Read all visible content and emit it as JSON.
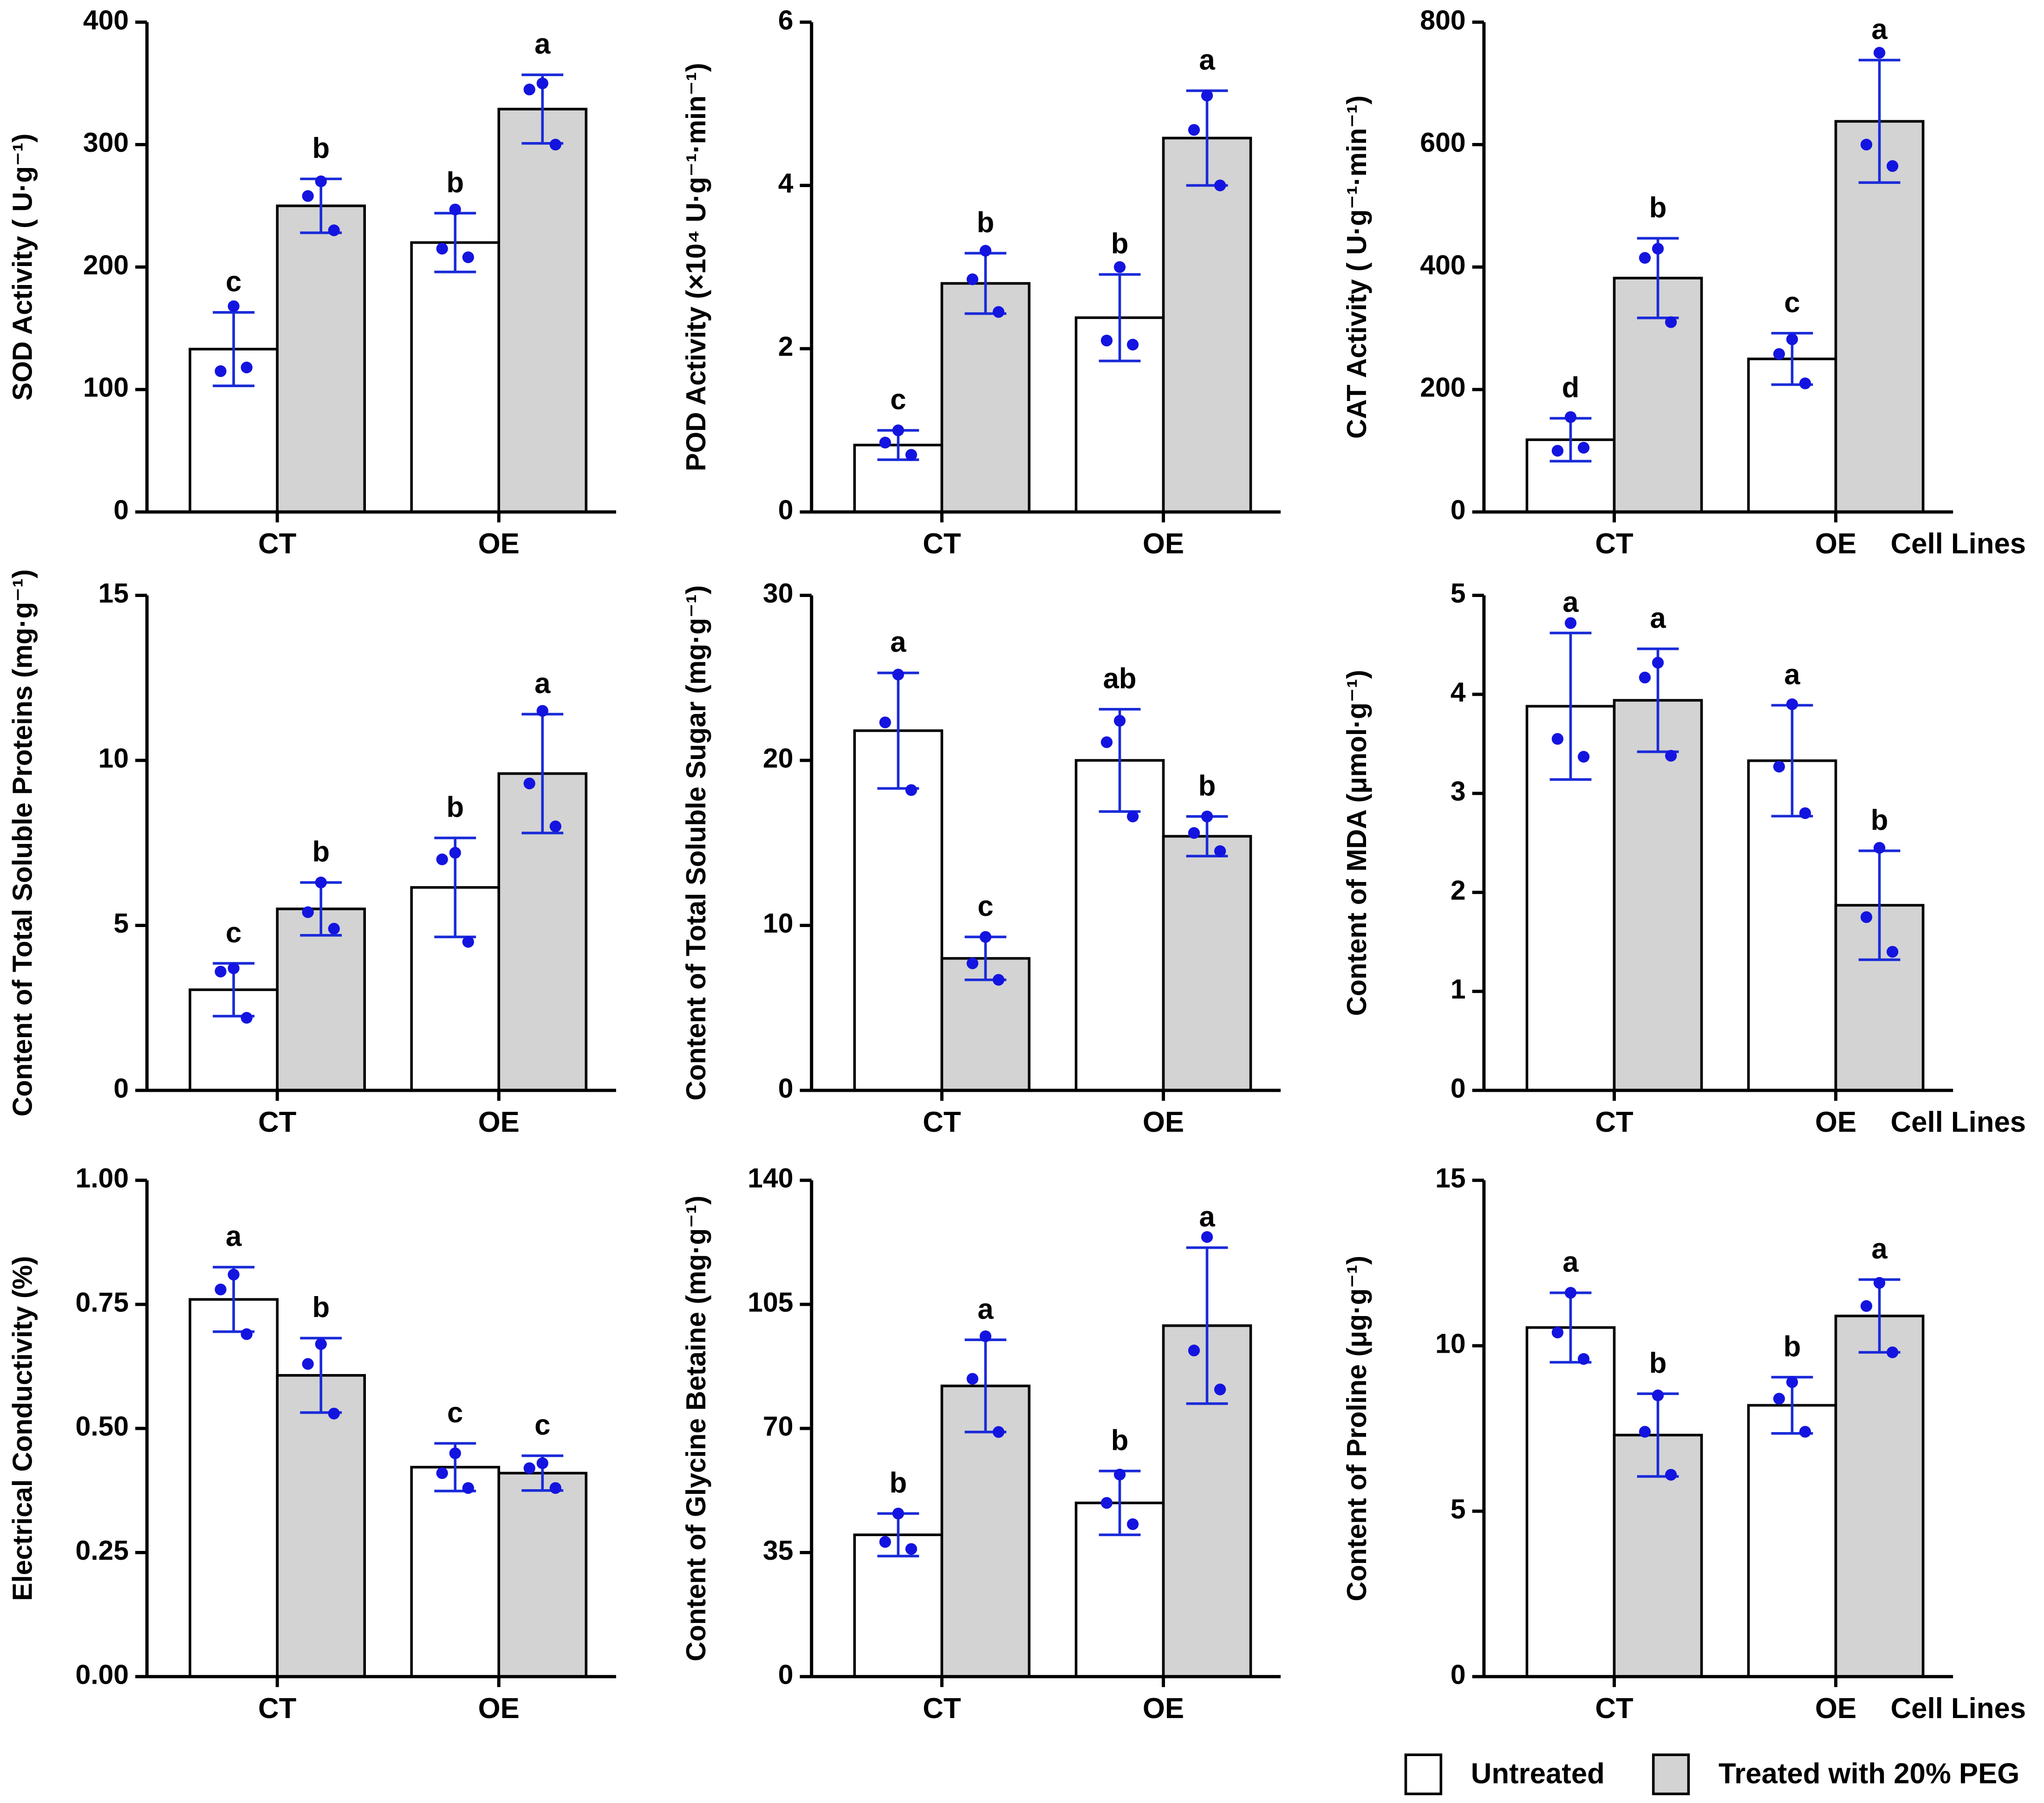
{
  "chart_data": [
    {
      "type": "bar",
      "ylabel": "SOD Activity  ( U·g⁻¹)",
      "categories": [
        "CT",
        "OE"
      ],
      "ylim": [
        0,
        400
      ],
      "yticks": [
        0,
        100,
        200,
        300,
        400
      ],
      "series": [
        {
          "color": "#ffffff",
          "values": [
            133,
            220
          ],
          "errors": [
            30,
            24
          ],
          "labels": [
            "c",
            "b"
          ],
          "points": [
            [
              168,
              115,
              118
            ],
            [
              247,
              215,
              208
            ]
          ]
        },
        {
          "color": "#d3d3d3",
          "values": [
            250,
            329
          ],
          "errors": [
            22,
            28
          ],
          "labels": [
            "b",
            "a"
          ],
          "points": [
            [
              270,
              258,
              230
            ],
            [
              350,
              345,
              300
            ]
          ]
        }
      ]
    },
    {
      "type": "bar",
      "ylabel": "POD Activity  (×10⁴ U·g⁻¹·min⁻¹)",
      "categories": [
        "CT",
        "OE"
      ],
      "ylim": [
        0,
        6
      ],
      "yticks": [
        0,
        2,
        4,
        6
      ],
      "series": [
        {
          "color": "#ffffff",
          "values": [
            0.82,
            2.38
          ],
          "errors": [
            0.18,
            0.53
          ],
          "labels": [
            "c",
            "b"
          ],
          "points": [
            [
              1.0,
              0.85,
              0.7
            ],
            [
              3.0,
              2.1,
              2.05
            ]
          ]
        },
        {
          "color": "#d3d3d3",
          "values": [
            2.8,
            4.58
          ],
          "errors": [
            0.37,
            0.58
          ],
          "labels": [
            "b",
            "a"
          ],
          "points": [
            [
              3.2,
              2.85,
              2.45
            ],
            [
              5.1,
              4.68,
              4.0
            ]
          ]
        }
      ]
    },
    {
      "type": "bar",
      "ylabel": "CAT Activity  ( U·g⁻¹·min⁻¹)",
      "xlabel": "Cell Lines",
      "categories": [
        "CT",
        "OE"
      ],
      "ylim": [
        0,
        800
      ],
      "yticks": [
        0,
        200,
        400,
        600,
        800
      ],
      "series": [
        {
          "color": "#ffffff",
          "values": [
            118,
            250
          ],
          "errors": [
            35,
            42
          ],
          "labels": [
            "d",
            "c"
          ],
          "points": [
            [
              155,
              100,
              105
            ],
            [
              282,
              258,
              210
            ]
          ]
        },
        {
          "color": "#d3d3d3",
          "values": [
            382,
            638
          ],
          "errors": [
            65,
            100
          ],
          "labels": [
            "b",
            "a"
          ],
          "points": [
            [
              430,
              415,
              310
            ],
            [
              750,
              600,
              565
            ]
          ]
        }
      ]
    },
    {
      "type": "bar",
      "ylabel": "Content of Total Soluble Proteins (mg·g⁻¹)",
      "categories": [
        "CT",
        "OE"
      ],
      "ylim": [
        0,
        15
      ],
      "yticks": [
        0,
        5,
        10,
        15
      ],
      "series": [
        {
          "color": "#ffffff",
          "values": [
            3.05,
            6.15
          ],
          "errors": [
            0.8,
            1.5
          ],
          "labels": [
            "c",
            "b"
          ],
          "points": [
            [
              3.7,
              3.6,
              2.2
            ],
            [
              7.2,
              7.0,
              4.5
            ]
          ]
        },
        {
          "color": "#d3d3d3",
          "values": [
            5.5,
            9.6
          ],
          "errors": [
            0.8,
            1.8
          ],
          "labels": [
            "b",
            "a"
          ],
          "points": [
            [
              6.3,
              5.4,
              4.9
            ],
            [
              11.5,
              9.3,
              8.0
            ]
          ]
        }
      ]
    },
    {
      "type": "bar",
      "ylabel": "Content of Total Soluble Sugar (mg·g⁻¹)",
      "categories": [
        "CT",
        "OE"
      ],
      "ylim": [
        0,
        30
      ],
      "yticks": [
        0,
        10,
        20,
        30
      ],
      "series": [
        {
          "color": "#ffffff",
          "values": [
            21.8,
            20.0
          ],
          "errors": [
            3.5,
            3.1
          ],
          "labels": [
            "a",
            "ab"
          ],
          "points": [
            [
              25.2,
              22.3,
              18.2
            ],
            [
              22.4,
              21.1,
              16.6
            ]
          ]
        },
        {
          "color": "#d3d3d3",
          "values": [
            8.0,
            15.4
          ],
          "errors": [
            1.3,
            1.2
          ],
          "labels": [
            "c",
            "b"
          ],
          "points": [
            [
              9.3,
              7.7,
              6.7
            ],
            [
              16.6,
              15.6,
              14.5
            ]
          ]
        }
      ]
    },
    {
      "type": "bar",
      "ylabel": "Content of MDA (μmol·g⁻¹)",
      "xlabel": "Cell Lines",
      "categories": [
        "CT",
        "OE"
      ],
      "ylim": [
        0,
        5
      ],
      "yticks": [
        0,
        1,
        2,
        3,
        4,
        5
      ],
      "series": [
        {
          "color": "#ffffff",
          "values": [
            3.88,
            3.33
          ],
          "errors": [
            0.74,
            0.56
          ],
          "labels": [
            "a",
            "a"
          ],
          "points": [
            [
              4.72,
              3.55,
              3.37
            ],
            [
              3.9,
              3.27,
              2.8
            ]
          ]
        },
        {
          "color": "#d3d3d3",
          "values": [
            3.94,
            1.87
          ],
          "errors": [
            0.52,
            0.55
          ],
          "labels": [
            "a",
            "b"
          ],
          "points": [
            [
              4.32,
              4.17,
              3.38
            ],
            [
              2.45,
              1.75,
              1.4
            ]
          ]
        }
      ]
    },
    {
      "type": "bar",
      "ylabel": "Electrical Conductivity  (%)",
      "categories": [
        "CT",
        "OE"
      ],
      "ylim": [
        0,
        1
      ],
      "yticks": [
        {
          "value": 0,
          "label": "0.00"
        },
        {
          "value": 0.25,
          "label": "0.25"
        },
        {
          "value": 0.5,
          "label": "0.50"
        },
        {
          "value": 0.75,
          "label": "0.75"
        },
        {
          "value": 1,
          "label": "1.00"
        }
      ],
      "series": [
        {
          "color": "#ffffff",
          "values": [
            0.76,
            0.422
          ],
          "errors": [
            0.065,
            0.048
          ],
          "labels": [
            "a",
            "c"
          ],
          "points": [
            [
              0.81,
              0.78,
              0.69
            ],
            [
              0.45,
              0.41,
              0.38
            ]
          ]
        },
        {
          "color": "#d3d3d3",
          "values": [
            0.607,
            0.41
          ],
          "errors": [
            0.075,
            0.035
          ],
          "labels": [
            "b",
            "c"
          ],
          "points": [
            [
              0.67,
              0.63,
              0.53
            ],
            [
              0.43,
              0.42,
              0.38
            ]
          ]
        }
      ]
    },
    {
      "type": "bar",
      "ylabel": "Content of Glycine Betaine (mg·g⁻¹)",
      "categories": [
        "CT",
        "OE"
      ],
      "ylim": [
        0,
        140
      ],
      "yticks": [
        0,
        35,
        70,
        105,
        140
      ],
      "series": [
        {
          "color": "#ffffff",
          "values": [
            40,
            49
          ],
          "errors": [
            6,
            9
          ],
          "labels": [
            "b",
            "b"
          ],
          "points": [
            [
              46,
              38,
              36
            ],
            [
              57,
              49,
              43
            ]
          ]
        },
        {
          "color": "#d3d3d3",
          "values": [
            82,
            99
          ],
          "errors": [
            13,
            22
          ],
          "labels": [
            "a",
            "a"
          ],
          "points": [
            [
              96,
              84,
              69
            ],
            [
              124,
              92,
              81
            ]
          ]
        }
      ]
    },
    {
      "type": "bar",
      "ylabel": "Content of Proline (μg·g⁻¹)",
      "xlabel": "Cell Lines",
      "categories": [
        "CT",
        "OE"
      ],
      "ylim": [
        0,
        15
      ],
      "yticks": [
        0,
        5,
        10,
        15
      ],
      "series": [
        {
          "color": "#ffffff",
          "values": [
            10.55,
            8.2
          ],
          "errors": [
            1.05,
            0.85
          ],
          "labels": [
            "a",
            "b"
          ],
          "points": [
            [
              11.6,
              10.4,
              9.6
            ],
            [
              8.9,
              8.4,
              7.4
            ]
          ]
        },
        {
          "color": "#d3d3d3",
          "values": [
            7.3,
            10.9
          ],
          "errors": [
            1.25,
            1.1
          ],
          "labels": [
            "b",
            "a"
          ],
          "points": [
            [
              8.5,
              7.4,
              6.1
            ],
            [
              11.9,
              11.2,
              9.8
            ]
          ]
        }
      ]
    }
  ],
  "legend": [
    "Untreated",
    "Treated with 20% PEG"
  ]
}
